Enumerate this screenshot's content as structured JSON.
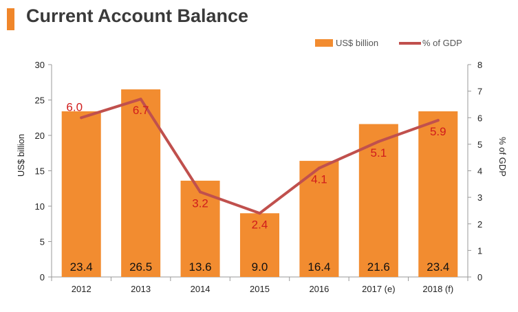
{
  "header": {
    "title": "Current Account Balance",
    "accent_color": "#f0862a"
  },
  "chart_data": {
    "type": "bar",
    "categories": [
      "2012",
      "2013",
      "2014",
      "2015",
      "2016",
      "2017 (e)",
      "2018 (f)"
    ],
    "series": [
      {
        "name": "US$ billion",
        "type": "bar",
        "axis": "left",
        "color": "#f28c30",
        "values": [
          23.4,
          26.5,
          13.6,
          9.0,
          16.4,
          21.6,
          23.4
        ]
      },
      {
        "name": "% of GDP",
        "type": "line",
        "axis": "right",
        "color": "#c0504d",
        "values": [
          6.0,
          6.7,
          3.2,
          2.4,
          4.1,
          5.1,
          5.9
        ]
      }
    ],
    "bar_labels": [
      "23.4",
      "26.5",
      "13.6",
      "9.0",
      "16.4",
      "21.6",
      "23.4"
    ],
    "line_labels": [
      "6.0",
      "6.7",
      "3.2",
      "2.4",
      "4.1",
      "5.1",
      "5.9"
    ],
    "ylabel": "US$ billion",
    "y2label": "% of GDP",
    "ylim": [
      0,
      30
    ],
    "y2lim": [
      0,
      8
    ],
    "yticks": [
      "0",
      "5",
      "10",
      "15",
      "20",
      "25",
      "30"
    ],
    "y2ticks": [
      "0",
      "1",
      "2",
      "3",
      "4",
      "5",
      "6",
      "7",
      "8"
    ],
    "legend_position": "top-right",
    "grid": false,
    "label_color": "#d01c1c"
  }
}
